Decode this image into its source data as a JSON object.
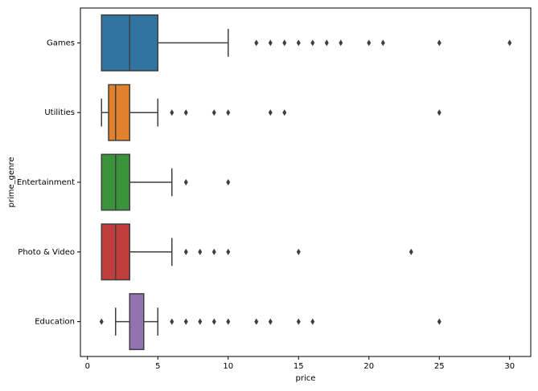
{
  "chart_data": {
    "type": "boxplot",
    "orientation": "horizontal",
    "x_label": "price",
    "y_label": "prime_genre",
    "categories": [
      "Games",
      "Utilities",
      "Entertainment",
      "Photo & Video",
      "Education"
    ],
    "boxes": [
      {
        "color": "#3274a1",
        "whisker_low": 1,
        "q1": 1,
        "median": 3,
        "q3": 5,
        "whisker_high": 10,
        "outliers": [
          12,
          13,
          14,
          15,
          16,
          17,
          18,
          20,
          21,
          25,
          30
        ]
      },
      {
        "color": "#e1812c",
        "whisker_low": 1,
        "q1": 1.5,
        "median": 2,
        "q3": 3,
        "whisker_high": 5,
        "outliers": [
          6,
          7,
          9,
          10,
          13,
          14,
          25
        ]
      },
      {
        "color": "#3a923a",
        "whisker_low": 1,
        "q1": 1,
        "median": 2,
        "q3": 3,
        "whisker_high": 6,
        "outliers": [
          7,
          10
        ]
      },
      {
        "color": "#c03d3e",
        "whisker_low": 1,
        "q1": 1,
        "median": 2,
        "q3": 3,
        "whisker_high": 6,
        "outliers": [
          7,
          8,
          9,
          10,
          15,
          23
        ]
      },
      {
        "color": "#9372b2",
        "whisker_low": 2,
        "q1": 3,
        "median": 3,
        "q3": 4,
        "whisker_high": 5,
        "outliers": [
          1,
          6,
          7,
          8,
          9,
          10,
          12,
          13,
          15,
          16,
          25
        ]
      }
    ],
    "xlim": [
      -0.5,
      31.5
    ],
    "xticks": [
      0,
      5,
      10,
      15,
      20,
      25,
      30
    ]
  }
}
